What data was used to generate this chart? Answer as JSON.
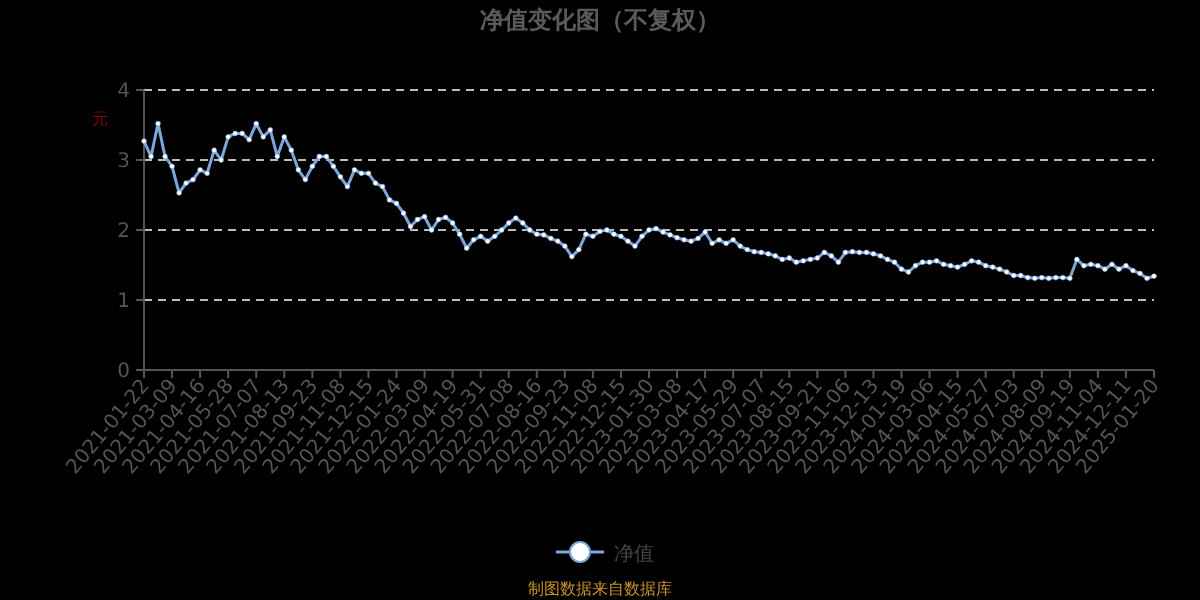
{
  "chart_data": {
    "type": "line",
    "title": "净值变化图（不复权）",
    "ylabel": "元",
    "categories": [
      "2021-01-22",
      null,
      null,
      null,
      "2021-03-09",
      null,
      null,
      null,
      "2021-04-16",
      null,
      null,
      null,
      "2021-05-28",
      null,
      null,
      null,
      "2021-07-07",
      null,
      null,
      null,
      "2021-08-13",
      null,
      null,
      null,
      "2021-09-23",
      null,
      null,
      null,
      "2021-11-08",
      null,
      null,
      null,
      "2021-12-15",
      null,
      null,
      null,
      "2022-01-24",
      null,
      null,
      null,
      "2022-03-09",
      null,
      null,
      null,
      "2022-04-19",
      null,
      null,
      null,
      "2022-05-31",
      null,
      null,
      null,
      "2022-07-08",
      null,
      null,
      null,
      "2022-08-16",
      null,
      null,
      null,
      "2022-09-23",
      null,
      null,
      null,
      "2022-11-08",
      null,
      null,
      null,
      "2022-12-15",
      null,
      null,
      null,
      "2023-01-30",
      null,
      null,
      null,
      "2023-03-08",
      null,
      null,
      null,
      "2023-04-17",
      null,
      null,
      null,
      "2023-05-29",
      null,
      null,
      null,
      "2023-07-07",
      null,
      null,
      null,
      "2023-08-15",
      null,
      null,
      null,
      "2023-09-21",
      null,
      null,
      null,
      "2023-11-06",
      null,
      null,
      null,
      "2023-12-13",
      null,
      null,
      null,
      "2024-01-19",
      null,
      null,
      null,
      "2024-03-06",
      null,
      null,
      null,
      "2024-04-15",
      null,
      null,
      null,
      "2024-05-27",
      null,
      null,
      null,
      "2024-07-03",
      null,
      null,
      null,
      "2024-08-09",
      null,
      null,
      null,
      "2024-09-19",
      null,
      null,
      null,
      "2024-11-04",
      null,
      null,
      null,
      "2024-12-11",
      null,
      null,
      null,
      "2025-01-20"
    ],
    "series": [
      {
        "name": "净值",
        "color": "#7ba7dc",
        "values": [
          3.27,
          3.05,
          3.52,
          3.05,
          2.91,
          2.53,
          2.67,
          2.72,
          2.86,
          2.81,
          3.14,
          3.0,
          3.33,
          3.38,
          3.38,
          3.29,
          3.52,
          3.33,
          3.43,
          3.05,
          3.33,
          3.14,
          2.86,
          2.72,
          2.91,
          3.05,
          3.05,
          2.91,
          2.76,
          2.62,
          2.86,
          2.81,
          2.81,
          2.67,
          2.62,
          2.43,
          2.38,
          2.24,
          2.05,
          2.15,
          2.19,
          2.0,
          2.15,
          2.18,
          2.1,
          1.94,
          1.74,
          1.86,
          1.91,
          1.84,
          1.91,
          2.0,
          2.1,
          2.17,
          2.1,
          2.0,
          1.94,
          1.93,
          1.88,
          1.84,
          1.77,
          1.62,
          1.72,
          1.94,
          1.91,
          1.98,
          2.0,
          1.94,
          1.91,
          1.84,
          1.77,
          1.91,
          2.0,
          2.02,
          1.97,
          1.93,
          1.89,
          1.86,
          1.84,
          1.88,
          1.97,
          1.81,
          1.86,
          1.81,
          1.86,
          1.77,
          1.72,
          1.69,
          1.68,
          1.66,
          1.63,
          1.58,
          1.6,
          1.54,
          1.56,
          1.58,
          1.6,
          1.68,
          1.63,
          1.54,
          1.68,
          1.69,
          1.68,
          1.68,
          1.66,
          1.63,
          1.58,
          1.54,
          1.44,
          1.4,
          1.49,
          1.54,
          1.54,
          1.56,
          1.51,
          1.49,
          1.47,
          1.51,
          1.56,
          1.54,
          1.49,
          1.47,
          1.44,
          1.4,
          1.35,
          1.35,
          1.32,
          1.31,
          1.32,
          1.31,
          1.32,
          1.32,
          1.31,
          1.58,
          1.49,
          1.51,
          1.49,
          1.44,
          1.51,
          1.44,
          1.49,
          1.42,
          1.38,
          1.31,
          1.34
        ]
      }
    ],
    "ylim": [
      0,
      4
    ],
    "yticks": [
      0,
      1,
      2,
      3,
      4
    ],
    "grid": "y",
    "legend": "bottom",
    "marker": "circle",
    "line_style": "solid",
    "annotations": [
      "制图数据来自数据库"
    ]
  }
}
